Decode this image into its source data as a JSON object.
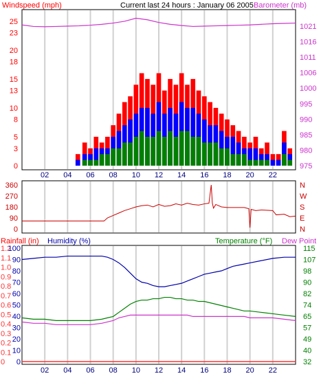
{
  "header": {
    "left_label": "Windspeed (mph)",
    "center_title": "Current last 24 hours : January 06 2005",
    "right_label": "Barometer (mb)"
  },
  "colors": {
    "wind_red": "#ff0000",
    "wind_blue": "#0000ff",
    "wind_green": "#008000",
    "barometer": "#cc33cc",
    "direction": "#cc0000",
    "humidity": "#0000aa",
    "temperature": "#008000",
    "dewpoint": "#cc33cc",
    "rain": "#ff3333",
    "grid": "#d0d0d0",
    "frame": "#000000"
  },
  "chart_data": [
    {
      "type": "line",
      "panel": "wind-barometer",
      "title": "Current last 24 hours : January 06 2005",
      "ylabel_left": "Windspeed (mph)",
      "ylabel_right": "Barometer (mb)",
      "x_ticks": [
        "02",
        "04",
        "06",
        "08",
        "10",
        "12",
        "14",
        "16",
        "18",
        "20",
        "22"
      ],
      "x_tick_hours": [
        2,
        4,
        6,
        8,
        10,
        12,
        14,
        16,
        18,
        20,
        22
      ],
      "xlim": [
        0,
        24
      ],
      "y_ticks_left": [
        "0",
        "3",
        "5",
        "8",
        "10",
        "13",
        "15",
        "18",
        "20",
        "23",
        "25"
      ],
      "y_ticks_right": [
        "975",
        "980",
        "985",
        "990",
        "995",
        "1000",
        "1006",
        "1011",
        "1016",
        "1021"
      ],
      "ylim_left": [
        0,
        27
      ],
      "ylim_right_labels": [
        "975",
        "1021"
      ],
      "grid": "vertical",
      "series": [
        {
          "name": "Barometer (mb)",
          "x": [
            0,
            1,
            2,
            3,
            4,
            5,
            6,
            7,
            8,
            9,
            10,
            11,
            12,
            13,
            14,
            15,
            16,
            17,
            18,
            19,
            20,
            21,
            22,
            23,
            24
          ],
          "values": [
            1021.4,
            1020.9,
            1020.8,
            1020.9,
            1021.0,
            1021.1,
            1021.3,
            1021.6,
            1022.0,
            1022.6,
            1023.6,
            1023.1,
            1022.2,
            1021.6,
            1021.2,
            1020.9,
            1021.0,
            1021.1,
            1021.2,
            1021.3,
            1021.4,
            1021.6,
            1021.8,
            1021.9,
            1022.0
          ]
        },
        {
          "name": "Wind gust",
          "x": [
            4.9,
            5.5,
            6,
            6.5,
            7,
            7.5,
            8,
            8.5,
            9,
            9.5,
            10,
            10.5,
            11,
            11.5,
            12,
            12.5,
            13,
            13.5,
            14,
            14.5,
            15,
            15.5,
            16,
            16.5,
            17,
            17.5,
            18,
            18.5,
            19,
            19.5,
            20,
            20.5,
            21,
            21.5,
            22,
            22.5,
            23,
            23.5
          ],
          "values": [
            2,
            4,
            3,
            5,
            4,
            5,
            7,
            9,
            11,
            12,
            14,
            16,
            15,
            14,
            16,
            13,
            15,
            14,
            16,
            14,
            15,
            13,
            12,
            11,
            10,
            9,
            8,
            7,
            6,
            5,
            4,
            5,
            3,
            4,
            2,
            2,
            6,
            3
          ]
        },
        {
          "name": "Wind average",
          "x": [
            4.9,
            5.5,
            6,
            6.5,
            7,
            7.5,
            8,
            8.5,
            9,
            9.5,
            10,
            10.5,
            11,
            11.5,
            12,
            12.5,
            13,
            13.5,
            14,
            14.5,
            15,
            15.5,
            16,
            16.5,
            17,
            17.5,
            18,
            18.5,
            19,
            19.5,
            20,
            20.5,
            21,
            21.5,
            22,
            22.5,
            23,
            23.5
          ],
          "values": [
            1,
            2,
            2,
            3,
            3,
            3,
            5,
            6,
            7,
            8,
            9,
            10,
            10,
            9,
            11,
            9,
            10,
            9,
            11,
            10,
            10,
            9,
            8,
            7,
            7,
            6,
            5,
            5,
            4,
            3,
            3,
            3,
            2,
            2,
            1,
            1,
            4,
            2
          ]
        },
        {
          "name": "Wind minimum",
          "x": [
            4.9,
            5.5,
            6,
            6.5,
            7,
            7.5,
            8,
            8.5,
            9,
            9.5,
            10,
            10.5,
            11,
            11.5,
            12,
            12.5,
            13,
            13.5,
            14,
            14.5,
            15,
            15.5,
            16,
            16.5,
            17,
            17.5,
            18,
            18.5,
            19,
            19.5,
            20,
            20.5,
            21,
            21.5,
            22,
            22.5,
            23,
            23.5
          ],
          "values": [
            0,
            1,
            1,
            1,
            2,
            2,
            3,
            3,
            4,
            4,
            5,
            6,
            5,
            5,
            6,
            5,
            6,
            5,
            6,
            6,
            5,
            5,
            4,
            4,
            4,
            3,
            3,
            2,
            2,
            2,
            1,
            1,
            1,
            1,
            0,
            0,
            2,
            1
          ]
        }
      ]
    },
    {
      "type": "line",
      "panel": "wind-direction",
      "x_ticks": [],
      "xlim": [
        0,
        24
      ],
      "y_ticks_left": [
        "0",
        "90",
        "180",
        "270",
        "360"
      ],
      "y_ticks_right": [
        "N",
        "E",
        "S",
        "W",
        "N"
      ],
      "ylim": [
        0,
        360
      ],
      "grid": "vertical",
      "series": [
        {
          "name": "Wind direction",
          "x": [
            0,
            2,
            4,
            6,
            7.2,
            7.5,
            8,
            8.5,
            9,
            9.5,
            10,
            10.5,
            11,
            11.5,
            12,
            12.5,
            13,
            13.5,
            14,
            14.5,
            15,
            15.5,
            16,
            16.4,
            16.6,
            16.7,
            16.8,
            17,
            17.5,
            18,
            18.5,
            19,
            19.5,
            19.9,
            20,
            20.1,
            20.5,
            21,
            22,
            22.3,
            23,
            23.5,
            24
          ],
          "values": [
            65,
            65,
            65,
            65,
            65,
            90,
            110,
            130,
            150,
            165,
            180,
            190,
            195,
            180,
            200,
            185,
            190,
            205,
            195,
            210,
            200,
            195,
            205,
            210,
            360,
            210,
            170,
            200,
            180,
            175,
            175,
            175,
            175,
            165,
            10,
            160,
            150,
            155,
            150,
            115,
            120,
            100,
            105
          ]
        }
      ]
    },
    {
      "type": "line",
      "panel": "humidity-temperature",
      "ylabel_left_1": "Rainfall (in)",
      "ylabel_left_2": "Humidity (%)",
      "ylabel_right_1": "Temperature (°F)",
      "ylabel_right_2": "Dew Point",
      "x_ticks": [
        "02",
        "04",
        "06",
        "08",
        "10",
        "12",
        "14",
        "16",
        "18",
        "20",
        "22"
      ],
      "x_tick_hours": [
        2,
        4,
        6,
        8,
        10,
        12,
        14,
        16,
        18,
        20,
        22
      ],
      "xlim": [
        0,
        24
      ],
      "y_ticks_rain": [
        "0",
        "0.1",
        "0.2",
        "0.3",
        "0.4",
        "0.5",
        "0.6",
        "0.7",
        "0.8",
        "0.9",
        "1.0",
        "1.1",
        "1.2"
      ],
      "y_ticks_humidity": [
        "0",
        "10",
        "20",
        "30",
        "40",
        "50",
        "60",
        "70",
        "80",
        "90",
        "100"
      ],
      "y_ticks_temperature": [
        "32",
        "40",
        "49",
        "57",
        "65",
        "74",
        "82",
        "90",
        "98",
        "107",
        "115"
      ],
      "ylim_humidity": [
        0,
        100
      ],
      "ylim_temperature": [
        32,
        115
      ],
      "grid": "vertical",
      "series": [
        {
          "name": "Humidity (%)",
          "x": [
            0,
            1,
            2,
            3,
            4,
            5,
            6,
            7,
            7.5,
            8,
            8.5,
            9,
            9.5,
            10,
            10.5,
            11,
            11.5,
            12,
            12.5,
            13,
            13.5,
            14,
            14.5,
            15,
            15.5,
            16,
            16.5,
            17,
            17.5,
            18,
            18.5,
            19,
            19.5,
            20,
            21,
            22,
            23,
            24
          ],
          "values": [
            90,
            91,
            92,
            92,
            93,
            93,
            93,
            93,
            92,
            90,
            87,
            83,
            78,
            73,
            70,
            69,
            67,
            66,
            66,
            67,
            68,
            69,
            71,
            73,
            75,
            77,
            78,
            79,
            80,
            82,
            84,
            85,
            86,
            87,
            89,
            91,
            92,
            92
          ]
        },
        {
          "name": "Temperature (°F)",
          "x": [
            0,
            1,
            2,
            3,
            4,
            5,
            6,
            7,
            7.5,
            8,
            8.5,
            9,
            9.5,
            10,
            10.5,
            11,
            11.5,
            12,
            12.5,
            13,
            13.5,
            14,
            14.5,
            15,
            15.5,
            16,
            16.5,
            17,
            17.5,
            18,
            18.5,
            19,
            19.5,
            20,
            21,
            22,
            23,
            24
          ],
          "values": [
            64,
            63,
            63,
            62,
            62,
            62,
            62,
            63,
            64,
            65,
            68,
            71,
            74,
            76,
            77,
            77,
            78,
            78,
            79,
            79,
            78,
            78,
            77,
            77,
            76,
            76,
            75,
            74,
            73,
            72,
            71,
            70,
            69,
            69,
            68,
            67,
            66,
            65
          ]
        },
        {
          "name": "Dew Point",
          "x": [
            0,
            1,
            2,
            3,
            4,
            5,
            6,
            7,
            7.5,
            8,
            8.5,
            9,
            9.5,
            10,
            10.5,
            11,
            11.5,
            12,
            12.5,
            13,
            13.5,
            14,
            14.5,
            15,
            15.5,
            16,
            16.5,
            17,
            17.5,
            18,
            18.5,
            19,
            19.5,
            20,
            21,
            22,
            23,
            24
          ],
          "values": [
            61,
            60,
            60,
            59,
            59,
            59,
            59,
            60,
            61,
            62,
            64,
            65,
            66,
            66,
            66,
            66,
            66,
            66,
            66,
            66,
            66,
            66,
            66,
            65,
            65,
            65,
            65,
            65,
            65,
            65,
            65,
            65,
            65,
            64,
            64,
            64,
            63,
            62
          ]
        },
        {
          "name": "Rainfall (in)",
          "x": [
            0,
            24
          ],
          "values": [
            0,
            0
          ]
        }
      ]
    }
  ]
}
